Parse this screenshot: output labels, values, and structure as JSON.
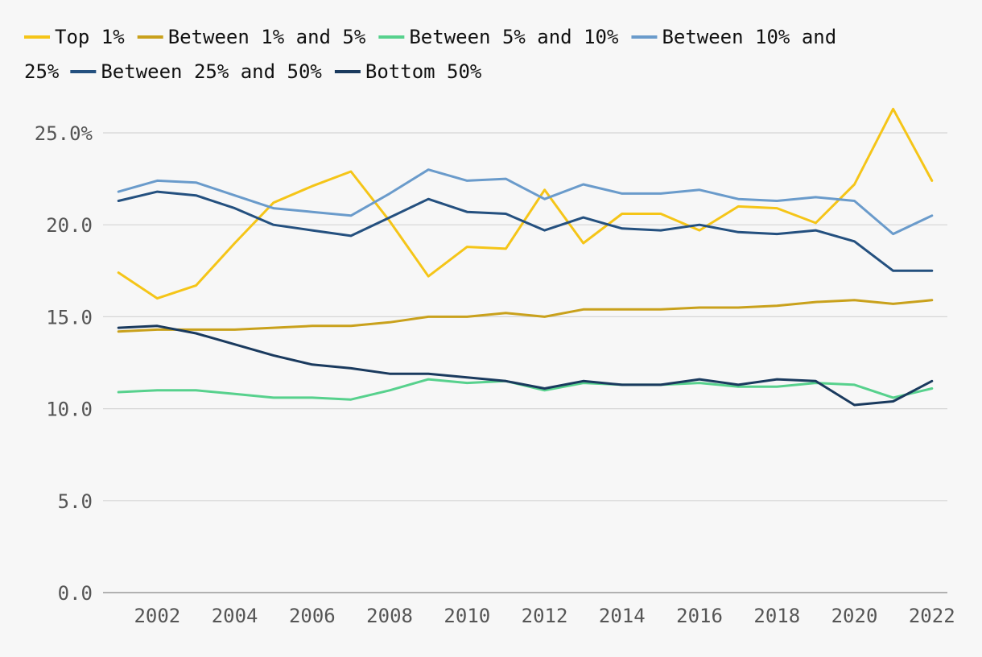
{
  "chart_data": {
    "type": "line",
    "title": "",
    "xlabel": "",
    "ylabel": "",
    "x": [
      2001,
      2002,
      2003,
      2004,
      2005,
      2006,
      2007,
      2008,
      2009,
      2010,
      2011,
      2012,
      2013,
      2014,
      2015,
      2016,
      2017,
      2018,
      2019,
      2020,
      2021,
      2022
    ],
    "xticks": [
      "2002",
      "2004",
      "2006",
      "2008",
      "2010",
      "2012",
      "2014",
      "2016",
      "2018",
      "2020",
      "2022"
    ],
    "yticks": [
      "0.0",
      "5.0",
      "10.0",
      "15.0",
      "20.0",
      "25.0%"
    ],
    "ylim": [
      0,
      25
    ],
    "xlim": [
      2000.6,
      2022.4
    ],
    "grid": true,
    "legend_position": "top",
    "series": [
      {
        "name": "Top 1%",
        "color": "#f5c518",
        "values": [
          17.4,
          16.0,
          16.7,
          19.0,
          21.2,
          22.1,
          22.9,
          20.2,
          17.2,
          18.8,
          18.7,
          21.9,
          19.0,
          20.6,
          20.6,
          19.7,
          21.0,
          20.9,
          20.1,
          22.2,
          26.3,
          22.4
        ]
      },
      {
        "name": "Between 1% and 5%",
        "color": "#c9a11c",
        "values": [
          14.2,
          14.3,
          14.3,
          14.3,
          14.4,
          14.5,
          14.5,
          14.7,
          15.0,
          15.0,
          15.2,
          15.0,
          15.4,
          15.4,
          15.4,
          15.5,
          15.5,
          15.6,
          15.8,
          15.9,
          15.7,
          15.9
        ]
      },
      {
        "name": "Between 5% and 10%",
        "color": "#57d18d",
        "values": [
          10.9,
          11.0,
          11.0,
          10.8,
          10.6,
          10.6,
          10.5,
          11.0,
          11.6,
          11.4,
          11.5,
          11.0,
          11.4,
          11.3,
          11.3,
          11.4,
          11.2,
          11.2,
          11.4,
          11.3,
          10.6,
          11.1
        ]
      },
      {
        "name": "Between 10% and 25%",
        "color": "#6a9bcb",
        "values": [
          21.8,
          22.4,
          22.3,
          21.6,
          20.9,
          20.7,
          20.5,
          21.7,
          23.0,
          22.4,
          22.5,
          21.4,
          22.2,
          21.7,
          21.7,
          21.9,
          21.4,
          21.3,
          21.5,
          21.3,
          19.5,
          20.5
        ]
      },
      {
        "name": "Between 25% and 50%",
        "color": "#24507f",
        "values": [
          21.3,
          21.8,
          21.6,
          20.9,
          20.0,
          19.7,
          19.4,
          20.4,
          21.4,
          20.7,
          20.6,
          19.7,
          20.4,
          19.8,
          19.7,
          20.0,
          19.6,
          19.5,
          19.7,
          19.1,
          17.5,
          17.5
        ]
      },
      {
        "name": "Bottom 50%",
        "color": "#1a3a5e",
        "values": [
          14.4,
          14.5,
          14.1,
          13.5,
          12.9,
          12.4,
          12.2,
          11.9,
          11.9,
          11.7,
          11.5,
          11.1,
          11.5,
          11.3,
          11.3,
          11.6,
          11.3,
          11.6,
          11.5,
          10.2,
          10.4,
          11.5
        ]
      }
    ]
  }
}
